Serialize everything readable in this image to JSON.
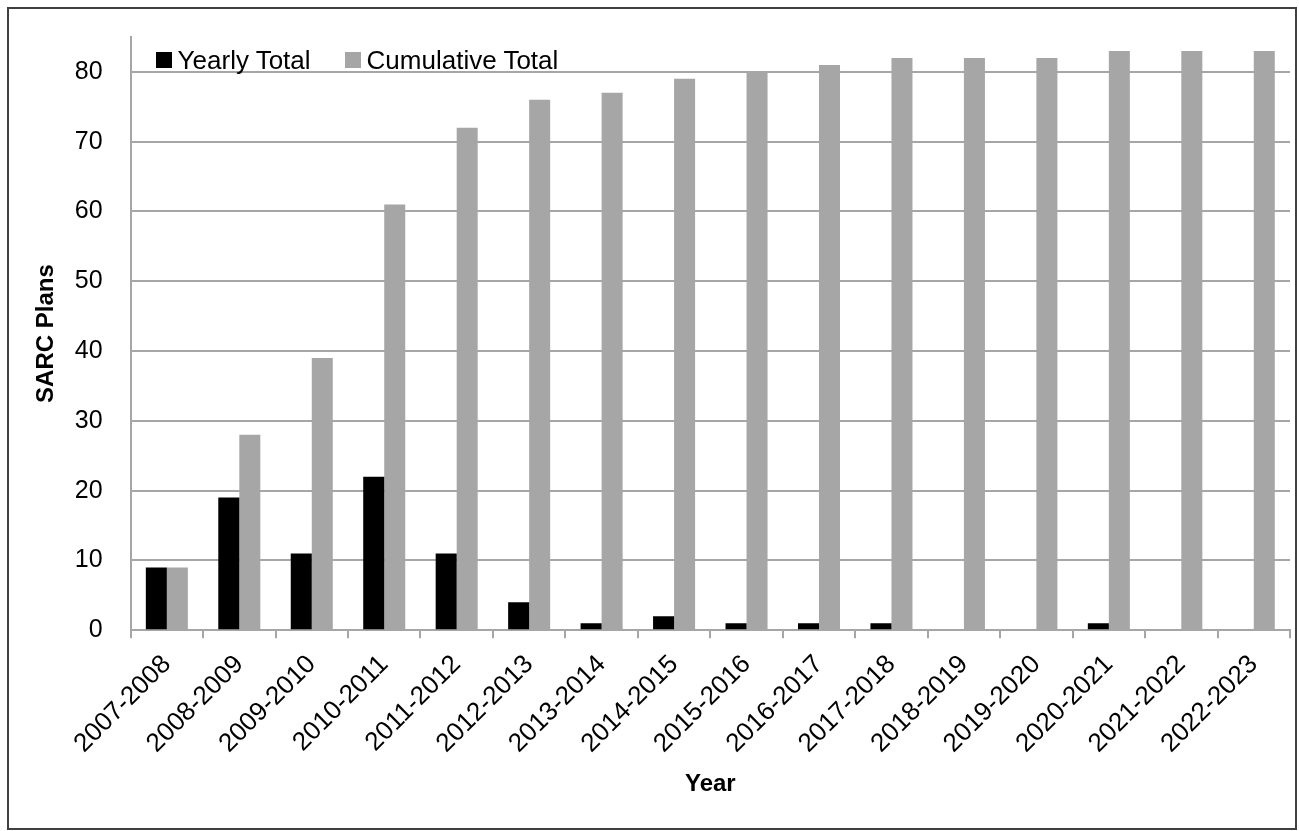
{
  "chart_data": {
    "type": "bar",
    "xlabel": "Year",
    "ylabel": "SARC Plans",
    "categories": [
      "2007-2008",
      "2008-2009",
      "2009-2010",
      "2010-2011",
      "2011-2012",
      "2012-2013",
      "2013-2014",
      "2014-2015",
      "2015-2016",
      "2016-2017",
      "2017-2018",
      "2018-2019",
      "2019-2020",
      "2020-2021",
      "2021-2022",
      "2022-2023"
    ],
    "series": [
      {
        "name": "Yearly Total",
        "color": "#000000",
        "values": [
          9,
          19,
          11,
          22,
          11,
          4,
          1,
          2,
          1,
          1,
          1,
          0,
          0,
          1,
          0,
          0
        ]
      },
      {
        "name": "Cumulative Total",
        "color": "#a6a6a6",
        "values": [
          9,
          28,
          39,
          61,
          72,
          76,
          77,
          79,
          80,
          81,
          82,
          82,
          82,
          83,
          83,
          83
        ]
      }
    ],
    "ylim": [
      0,
      85
    ],
    "yticks": [
      0,
      10,
      20,
      30,
      40,
      50,
      60,
      70,
      80
    ],
    "grid": "y",
    "legend": "top left"
  }
}
